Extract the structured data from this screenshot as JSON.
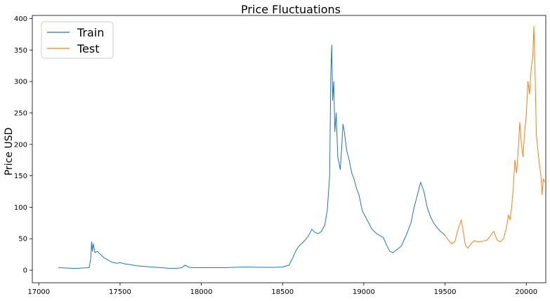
{
  "chart_data": {
    "type": "line",
    "title": "Price Fluctuations",
    "xlabel": "",
    "ylabel": "Price USD",
    "xlim": [
      16960,
      20120
    ],
    "ylim": [
      -20,
      405
    ],
    "x_ticks": [
      17000,
      17500,
      18000,
      18500,
      19000,
      19500,
      20000
    ],
    "y_ticks": [
      0,
      50,
      100,
      150,
      200,
      250,
      300,
      350,
      400
    ],
    "grid": false,
    "legend": {
      "placement": "top-left",
      "entries": [
        "Train",
        "Test"
      ]
    },
    "series": [
      {
        "name": "Train",
        "color": "#1f77b4",
        "points": [
          [
            17120,
            4
          ],
          [
            17160,
            3.5
          ],
          [
            17200,
            3
          ],
          [
            17240,
            3
          ],
          [
            17280,
            3.5
          ],
          [
            17310,
            4
          ],
          [
            17320,
            20
          ],
          [
            17325,
            45
          ],
          [
            17330,
            30
          ],
          [
            17335,
            42
          ],
          [
            17345,
            28
          ],
          [
            17360,
            30
          ],
          [
            17380,
            25
          ],
          [
            17400,
            20
          ],
          [
            17420,
            17
          ],
          [
            17440,
            14
          ],
          [
            17460,
            12
          ],
          [
            17480,
            11
          ],
          [
            17500,
            12
          ],
          [
            17530,
            10
          ],
          [
            17560,
            9
          ],
          [
            17600,
            7
          ],
          [
            17650,
            6
          ],
          [
            17700,
            5
          ],
          [
            17750,
            4
          ],
          [
            17800,
            3
          ],
          [
            17850,
            3
          ],
          [
            17880,
            4
          ],
          [
            17900,
            8
          ],
          [
            17920,
            5
          ],
          [
            17950,
            4
          ],
          [
            18000,
            4
          ],
          [
            18050,
            4
          ],
          [
            18100,
            4
          ],
          [
            18150,
            4
          ],
          [
            18200,
            4.5
          ],
          [
            18250,
            5
          ],
          [
            18300,
            5
          ],
          [
            18350,
            4.5
          ],
          [
            18400,
            4.5
          ],
          [
            18450,
            4.5
          ],
          [
            18500,
            5
          ],
          [
            18540,
            8
          ],
          [
            18560,
            18
          ],
          [
            18580,
            30
          ],
          [
            18600,
            38
          ],
          [
            18620,
            43
          ],
          [
            18640,
            48
          ],
          [
            18660,
            55
          ],
          [
            18680,
            65
          ],
          [
            18700,
            60
          ],
          [
            18720,
            58
          ],
          [
            18740,
            62
          ],
          [
            18760,
            72
          ],
          [
            18775,
            95
          ],
          [
            18790,
            150
          ],
          [
            18797,
            315
          ],
          [
            18803,
            358
          ],
          [
            18808,
            270
          ],
          [
            18815,
            300
          ],
          [
            18822,
            220
          ],
          [
            18830,
            250
          ],
          [
            18840,
            180
          ],
          [
            18855,
            160
          ],
          [
            18865,
            200
          ],
          [
            18872,
            232
          ],
          [
            18880,
            220
          ],
          [
            18895,
            190
          ],
          [
            18910,
            175
          ],
          [
            18925,
            155
          ],
          [
            18940,
            145
          ],
          [
            18955,
            130
          ],
          [
            18970,
            120
          ],
          [
            18990,
            95
          ],
          [
            19010,
            85
          ],
          [
            19030,
            75
          ],
          [
            19050,
            65
          ],
          [
            19080,
            58
          ],
          [
            19100,
            55
          ],
          [
            19120,
            52
          ],
          [
            19140,
            40
          ],
          [
            19160,
            30
          ],
          [
            19180,
            28
          ],
          [
            19200,
            32
          ],
          [
            19230,
            38
          ],
          [
            19260,
            55
          ],
          [
            19290,
            75
          ],
          [
            19310,
            100
          ],
          [
            19330,
            120
          ],
          [
            19350,
            140
          ],
          [
            19370,
            125
          ],
          [
            19390,
            100
          ],
          [
            19410,
            85
          ],
          [
            19430,
            75
          ],
          [
            19450,
            68
          ],
          [
            19470,
            62
          ],
          [
            19490,
            58
          ],
          [
            19500,
            55
          ]
        ]
      },
      {
        "name": "Test",
        "color": "#ff7f0e",
        "points": [
          [
            19500,
            55
          ],
          [
            19520,
            48
          ],
          [
            19540,
            42
          ],
          [
            19560,
            45
          ],
          [
            19580,
            65
          ],
          [
            19590,
            72
          ],
          [
            19600,
            80
          ],
          [
            19610,
            65
          ],
          [
            19625,
            40
          ],
          [
            19640,
            35
          ],
          [
            19660,
            42
          ],
          [
            19680,
            47
          ],
          [
            19700,
            45
          ],
          [
            19730,
            46
          ],
          [
            19760,
            48
          ],
          [
            19780,
            55
          ],
          [
            19800,
            62
          ],
          [
            19820,
            48
          ],
          [
            19840,
            45
          ],
          [
            19860,
            50
          ],
          [
            19880,
            70
          ],
          [
            19890,
            88
          ],
          [
            19900,
            80
          ],
          [
            19910,
            100
          ],
          [
            19920,
            130
          ],
          [
            19930,
            175
          ],
          [
            19940,
            155
          ],
          [
            19950,
            190
          ],
          [
            19960,
            235
          ],
          [
            19970,
            200
          ],
          [
            19980,
            180
          ],
          [
            19990,
            220
          ],
          [
            20000,
            245
          ],
          [
            20010,
            300
          ],
          [
            20020,
            280
          ],
          [
            20030,
            320
          ],
          [
            20040,
            340
          ],
          [
            20047,
            388
          ],
          [
            20055,
            300
          ],
          [
            20062,
            215
          ],
          [
            20070,
            195
          ],
          [
            20080,
            170
          ],
          [
            20090,
            150
          ],
          [
            20097,
            120
          ],
          [
            20105,
            145
          ],
          [
            20115,
            140
          ]
        ]
      }
    ]
  }
}
